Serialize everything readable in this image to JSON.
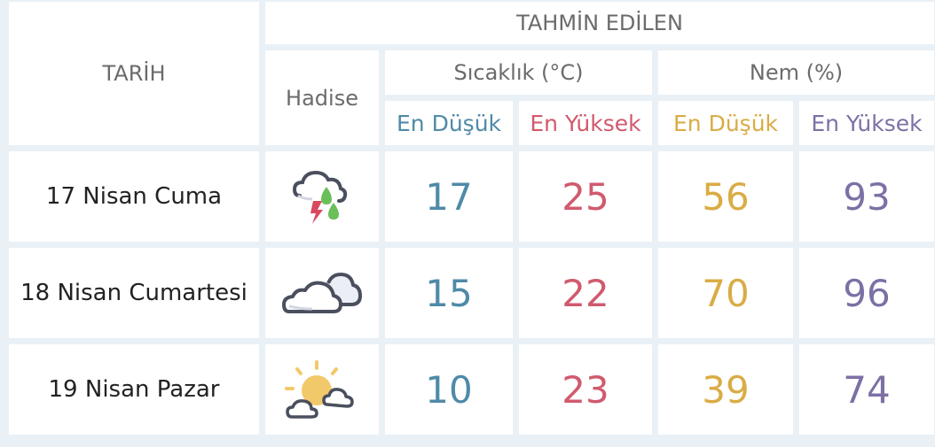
{
  "header": {
    "date_label": "TARİH",
    "event_label": "Hadise",
    "forecast_label": "TAHMİN EDİLEN",
    "temperature_label": "Sıcaklık (°C)",
    "humidity_label": "Nem (%)",
    "temp_min_label": "En Düşük",
    "temp_max_label": "En Yüksek",
    "hum_min_label": "En Düşük",
    "hum_max_label": "En Yüksek"
  },
  "colors": {
    "temp_min": "#4f8aa8",
    "temp_max": "#d05a6e",
    "hum_min": "#d9ac45",
    "hum_max": "#7d70a5"
  },
  "rows": [
    {
      "date": "17 Nisan Cuma",
      "icon": "thunderstorm-rain-icon",
      "temp_min": "17",
      "temp_max": "25",
      "hum_min": "56",
      "hum_max": "93"
    },
    {
      "date": "18 Nisan Cumartesi",
      "icon": "cloudy-icon",
      "temp_min": "15",
      "temp_max": "22",
      "hum_min": "70",
      "hum_max": "96"
    },
    {
      "date": "19 Nisan Pazar",
      "icon": "partly-cloudy-icon",
      "temp_min": "10",
      "temp_max": "23",
      "hum_min": "39",
      "hum_max": "74"
    }
  ]
}
